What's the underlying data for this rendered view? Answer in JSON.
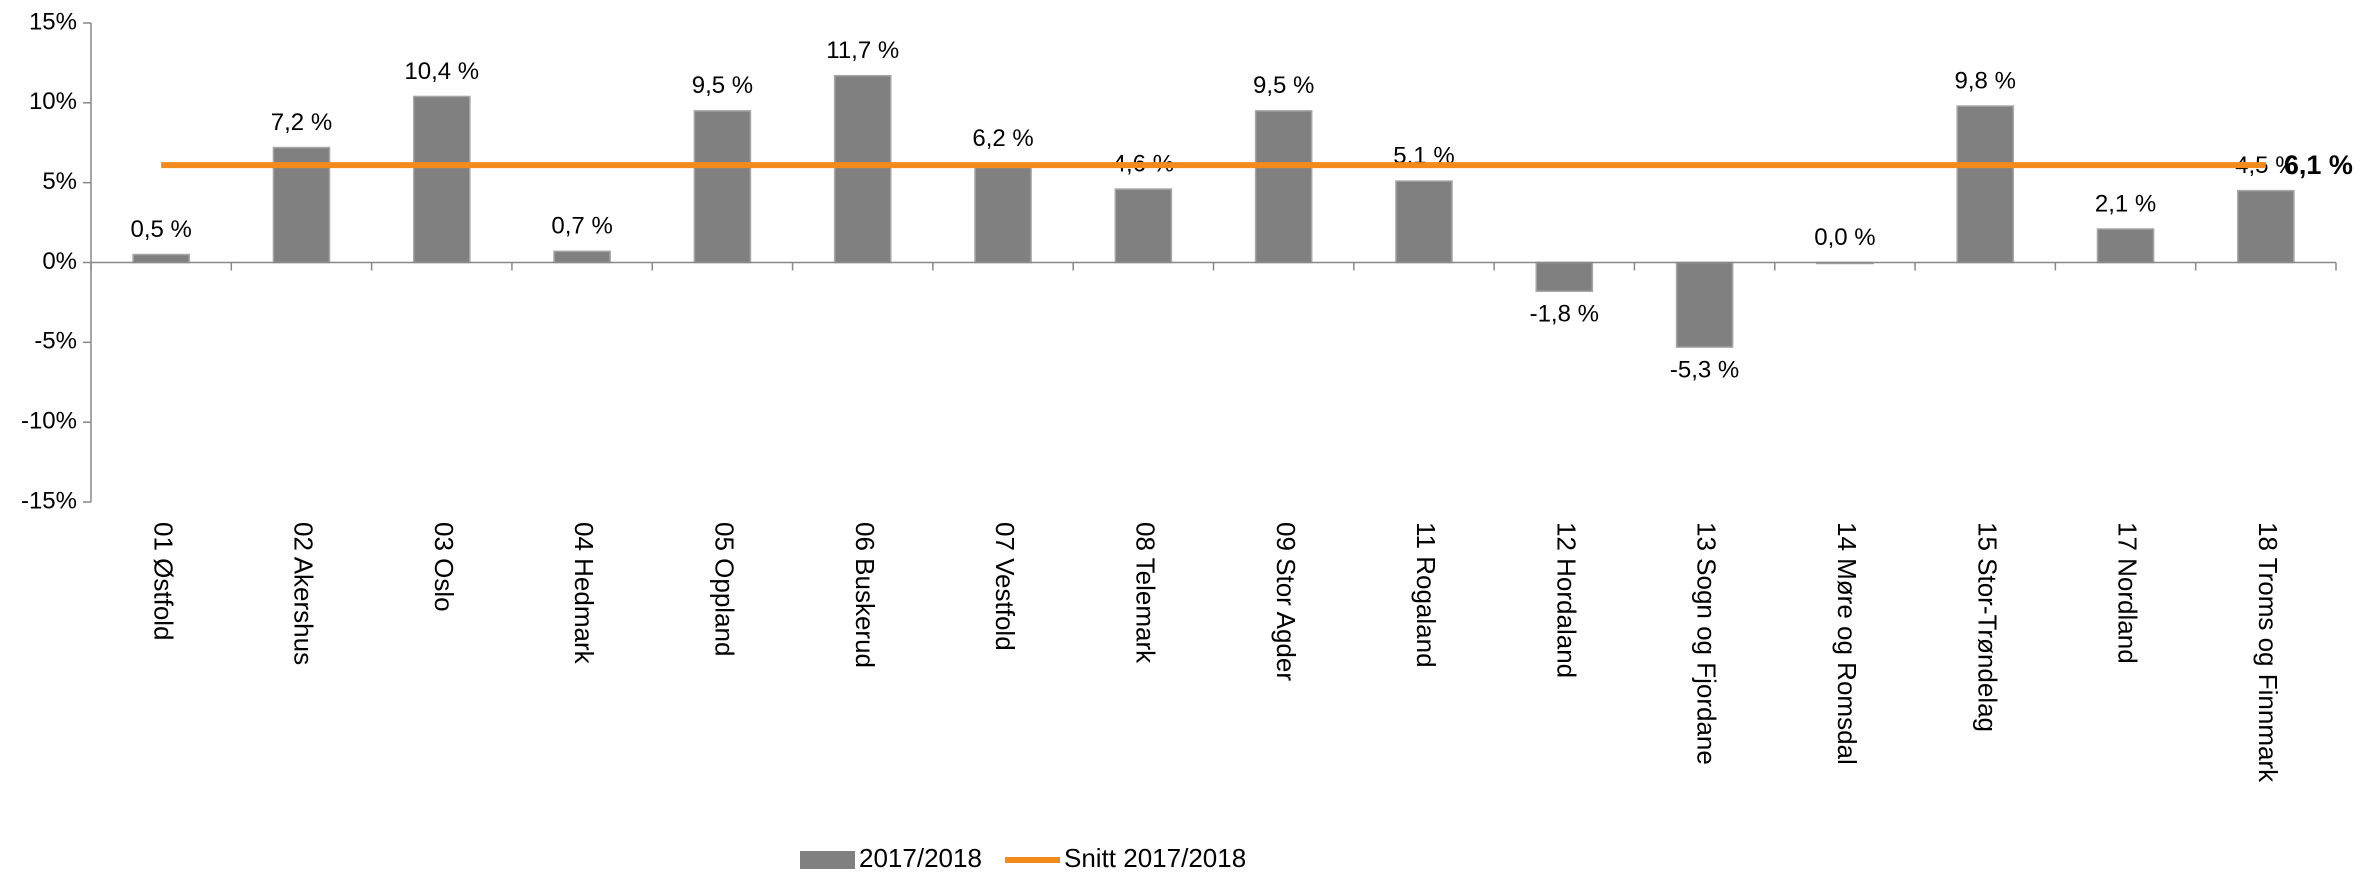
{
  "chart_data": {
    "type": "bar",
    "categories": [
      "01 Østfold",
      "02 Akershus",
      "03 Oslo",
      "04 Hedmark",
      "05 Oppland",
      "06 Buskerud",
      "07 Vestfold",
      "08 Telemark",
      "09 Stor Agder",
      "11 Rogaland",
      "12 Hordaland",
      "13 Sogn og Fjordane",
      "14 Møre og Romsdal",
      "15 Stor-Trøndelag",
      "17 Nordland",
      "18 Troms og Finnmark"
    ],
    "series": [
      {
        "name": "2017/2018",
        "type": "bar",
        "color": "#808080",
        "values": [
          0.5,
          7.2,
          10.4,
          0.7,
          9.5,
          11.7,
          6.2,
          4.6,
          9.5,
          5.1,
          -1.8,
          -5.3,
          0.0,
          9.8,
          2.1,
          4.5
        ],
        "value_labels": [
          "0,5 %",
          "7,2 %",
          "10,4 %",
          "0,7 %",
          "9,5 %",
          "11,7 %",
          "6,2 %",
          "4,6 %",
          "9,5 %",
          "5,1 %",
          "-1,8 %",
          "-5,3 %",
          "0,0 %",
          "9,8 %",
          "2,1 %",
          "4,5 %"
        ]
      },
      {
        "name": "Snitt 2017/2018",
        "type": "line",
        "color": "#f28a1c",
        "values": [
          6.1,
          6.1,
          6.1,
          6.1,
          6.1,
          6.1,
          6.1,
          6.1,
          6.1,
          6.1,
          6.1,
          6.1,
          6.1,
          6.1,
          6.1,
          6.1
        ],
        "end_label": "6,1 %"
      }
    ],
    "ylim": [
      -15,
      15
    ],
    "yticks": [
      {
        "value": -15,
        "label": "-15%"
      },
      {
        "value": -10,
        "label": "-10%"
      },
      {
        "value": -5,
        "label": "-5%"
      },
      {
        "value": 0,
        "label": "0%"
      },
      {
        "value": 5,
        "label": "5%"
      },
      {
        "value": 10,
        "label": "10%"
      },
      {
        "value": 15,
        "label": "15%"
      }
    ],
    "legend": "bottom"
  }
}
